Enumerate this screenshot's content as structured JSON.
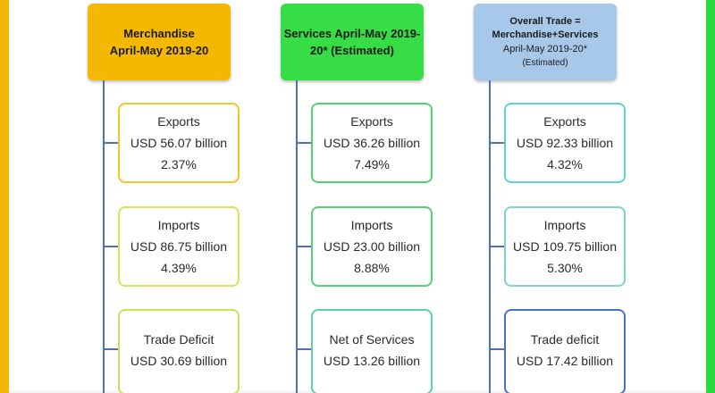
{
  "columns": [
    {
      "header_lines": [
        "Merchandise",
        "April-May 2019-20"
      ],
      "header_color": "#f5b800",
      "box_border": "#f0c72e",
      "boxes": [
        {
          "label": "Exports",
          "value": "USD 56.07 billion",
          "pct": "2.37%"
        },
        {
          "label": "Imports",
          "value": "USD 86.75 billion",
          "pct": "4.39%"
        },
        {
          "label": "Trade Deficit",
          "value": "USD 30.69 billion",
          "pct": ""
        }
      ]
    },
    {
      "header_lines": [
        "Services April-May 2019-",
        "20* (Estimated)"
      ],
      "header_color": "#36dd45",
      "box_border": "#4fd56a",
      "boxes": [
        {
          "label": "Exports",
          "value": "USD 36.26 billion",
          "pct": "7.49%"
        },
        {
          "label": "Imports",
          "value": "USD 23.00 billion",
          "pct": "8.88%"
        },
        {
          "label": "Net of Services",
          "value": "USD 13.26 billion",
          "pct": ""
        }
      ]
    },
    {
      "header_lines": [
        "Overall Trade =",
        "Merchandise+Services",
        "April-May 2019-20*",
        "(Estimated)"
      ],
      "header_color": "#a8c8ea",
      "box_border_1": "#5fd3d0",
      "box_border_2": "#7bd6c8",
      "box_border_3": "#4a6fc4",
      "boxes": [
        {
          "label": "Exports",
          "value": "USD 92.33 billion",
          "pct": "4.32%"
        },
        {
          "label": "Imports",
          "value": "USD 109.75 billion",
          "pct": "5.30%"
        },
        {
          "label": "Trade deficit",
          "value": "USD 17.42 billion",
          "pct": ""
        }
      ]
    }
  ]
}
